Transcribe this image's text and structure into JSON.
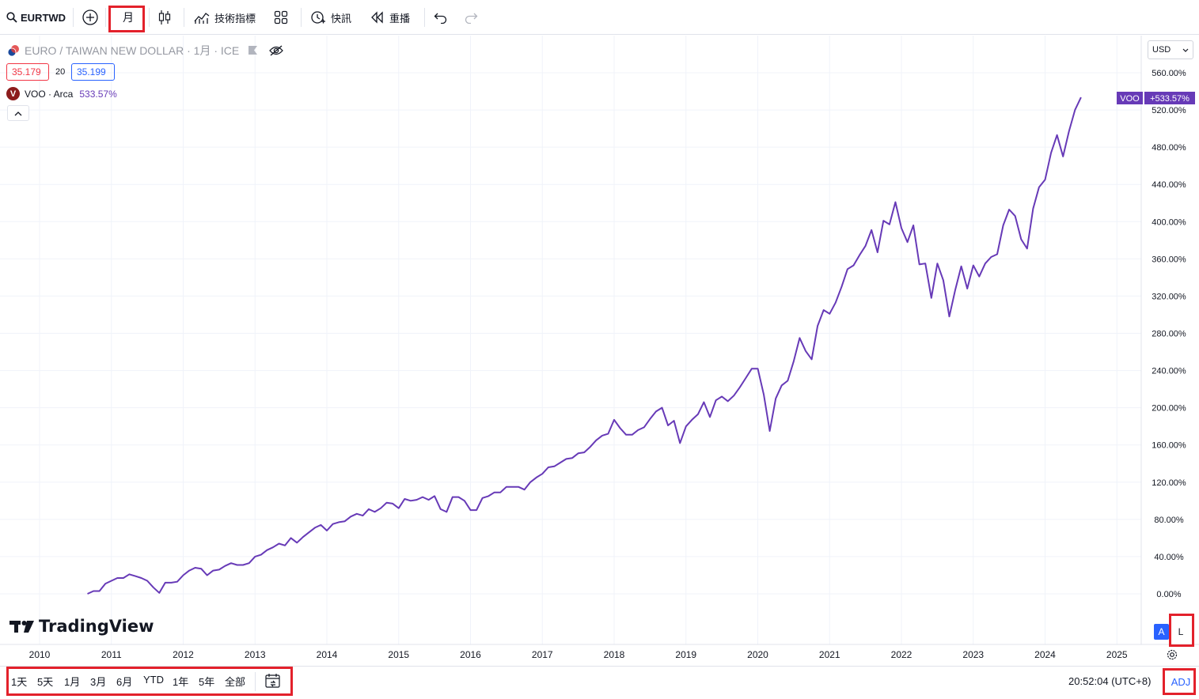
{
  "toolbar": {
    "symbol": "EURTWD",
    "interval": "月",
    "indicators_label": "技術指標",
    "alert_label": "快訊",
    "replay_label": "重播"
  },
  "legend": {
    "title": "EURO / TAIWAN NEW DOLLAR · 1月 · ICE",
    "bid": "35.179",
    "spread": "20",
    "ask": "35.199",
    "compare_symbol": "VOO · Arca",
    "compare_value": "533.57%",
    "voo_badge_letter": "V"
  },
  "price_scale": {
    "currency": "USD",
    "last_label_symbol": "VOO",
    "last_label_value": "+533.57%",
    "ticks": [
      "560.00%",
      "520.00%",
      "480.00%",
      "440.00%",
      "400.00%",
      "360.00%",
      "320.00%",
      "280.00%",
      "240.00%",
      "200.00%",
      "160.00%",
      "120.00%",
      "80.00%",
      "40.00%",
      "0.00%"
    ],
    "auto_label": "A",
    "log_label": "L"
  },
  "time_scale": {
    "ticks": [
      "2010",
      "2011",
      "2012",
      "2013",
      "2014",
      "2015",
      "2016",
      "2017",
      "2018",
      "2019",
      "2020",
      "2021",
      "2022",
      "2023",
      "2024",
      "2025"
    ]
  },
  "bottom": {
    "ranges": [
      "1天",
      "5天",
      "1月",
      "3月",
      "6月",
      "YTD",
      "1年",
      "5年",
      "全部"
    ],
    "clock": "20:52:04 (UTC+8)",
    "adj_label": "ADJ"
  },
  "brand": {
    "name": "TradingView"
  },
  "colors": {
    "line": "#673ab7",
    "accent": "#2962ff",
    "red_box": "#e3212b",
    "down": "#f23645"
  },
  "chart_data": {
    "type": "line",
    "series": [
      {
        "name": "VOO",
        "x": [
          "2010-09",
          "2010-10",
          "2010-11",
          "2010-12",
          "2011-01",
          "2011-02",
          "2011-03",
          "2011-04",
          "2011-05",
          "2011-06",
          "2011-07",
          "2011-08",
          "2011-09",
          "2011-10",
          "2011-11",
          "2011-12",
          "2012-01",
          "2012-02",
          "2012-03",
          "2012-04",
          "2012-05",
          "2012-06",
          "2012-07",
          "2012-08",
          "2012-09",
          "2012-10",
          "2012-11",
          "2012-12",
          "2013-01",
          "2013-02",
          "2013-03",
          "2013-04",
          "2013-05",
          "2013-06",
          "2013-07",
          "2013-08",
          "2013-09",
          "2013-10",
          "2013-11",
          "2013-12",
          "2014-01",
          "2014-02",
          "2014-03",
          "2014-04",
          "2014-05",
          "2014-06",
          "2014-07",
          "2014-08",
          "2014-09",
          "2014-10",
          "2014-11",
          "2014-12",
          "2015-01",
          "2015-02",
          "2015-03",
          "2015-04",
          "2015-05",
          "2015-06",
          "2015-07",
          "2015-08",
          "2015-09",
          "2015-10",
          "2015-11",
          "2015-12",
          "2016-01",
          "2016-02",
          "2016-03",
          "2016-04",
          "2016-05",
          "2016-06",
          "2016-07",
          "2016-08",
          "2016-09",
          "2016-10",
          "2016-11",
          "2016-12",
          "2017-01",
          "2017-02",
          "2017-03",
          "2017-04",
          "2017-05",
          "2017-06",
          "2017-07",
          "2017-08",
          "2017-09",
          "2017-10",
          "2017-11",
          "2017-12",
          "2018-01",
          "2018-02",
          "2018-03",
          "2018-04",
          "2018-05",
          "2018-06",
          "2018-07",
          "2018-08",
          "2018-09",
          "2018-10",
          "2018-11",
          "2018-12",
          "2019-01",
          "2019-02",
          "2019-03",
          "2019-04",
          "2019-05",
          "2019-06",
          "2019-07",
          "2019-08",
          "2019-09",
          "2019-10",
          "2019-11",
          "2019-12",
          "2020-01",
          "2020-02",
          "2020-03",
          "2020-04",
          "2020-05",
          "2020-06",
          "2020-07",
          "2020-08",
          "2020-09",
          "2020-10",
          "2020-11",
          "2020-12",
          "2021-01",
          "2021-02",
          "2021-03",
          "2021-04",
          "2021-05",
          "2021-06",
          "2021-07",
          "2021-08",
          "2021-09",
          "2021-10",
          "2021-11",
          "2021-12",
          "2022-01",
          "2022-02",
          "2022-03",
          "2022-04",
          "2022-05",
          "2022-06",
          "2022-07",
          "2022-08",
          "2022-09",
          "2022-10",
          "2022-11",
          "2022-12",
          "2023-01",
          "2023-02",
          "2023-03",
          "2023-04",
          "2023-05",
          "2023-06",
          "2023-07",
          "2023-08",
          "2023-09",
          "2023-10",
          "2023-11",
          "2023-12",
          "2024-01",
          "2024-02",
          "2024-03",
          "2024-04",
          "2024-05",
          "2024-06",
          "2024-07"
        ],
        "values": [
          0,
          3,
          3,
          11,
          14,
          17,
          17,
          21,
          19,
          17,
          14,
          7,
          1,
          12,
          12,
          13,
          20,
          25,
          28,
          27,
          20,
          25,
          26,
          30,
          33,
          31,
          31,
          33,
          40,
          42,
          47,
          50,
          54,
          52,
          60,
          55,
          61,
          66,
          71,
          74,
          68,
          75,
          77,
          78,
          83,
          86,
          84,
          91,
          88,
          92,
          98,
          97,
          92,
          102,
          100,
          101,
          104,
          101,
          105,
          91,
          88,
          104,
          104,
          100,
          90,
          90,
          103,
          105,
          109,
          109,
          115,
          115,
          115,
          112,
          120,
          125,
          129,
          136,
          137,
          141,
          145,
          146,
          151,
          152,
          158,
          165,
          170,
          172,
          187,
          178,
          171,
          171,
          176,
          179,
          188,
          196,
          200,
          181,
          186,
          162,
          180,
          187,
          193,
          206,
          190,
          208,
          212,
          207,
          213,
          222,
          232,
          242,
          242,
          214,
          175,
          210,
          224,
          229,
          250,
          275,
          261,
          252,
          288,
          305,
          301,
          313,
          330,
          349,
          353,
          364,
          374,
          391,
          367,
          401,
          397,
          421,
          393,
          378,
          396,
          354,
          355,
          318,
          355,
          337,
          298,
          327,
          352,
          328,
          353,
          341,
          355,
          362,
          365,
          396,
          413,
          406,
          381,
          371,
          414,
          437,
          445,
          474,
          493,
          470,
          497,
          520,
          533.57
        ]
      }
    ],
    "ylim": [
      -40,
      580
    ],
    "y_ticks": [
      0,
      40,
      80,
      120,
      160,
      200,
      240,
      280,
      320,
      360,
      400,
      440,
      480,
      520,
      560
    ],
    "x_ticks": [
      "2010",
      "2011",
      "2012",
      "2013",
      "2014",
      "2015",
      "2016",
      "2017",
      "2018",
      "2019",
      "2020",
      "2021",
      "2022",
      "2023",
      "2024",
      "2025"
    ],
    "grid": true,
    "last_value": 533.57
  }
}
